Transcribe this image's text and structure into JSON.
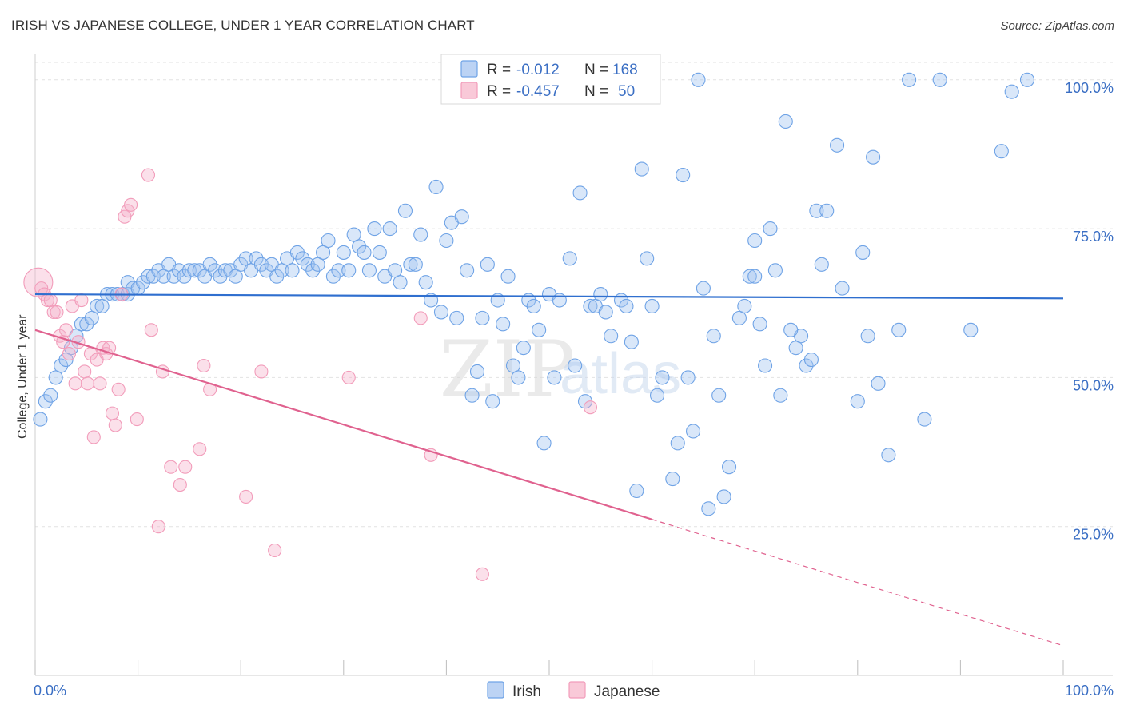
{
  "title": "IRISH VS JAPANESE COLLEGE, UNDER 1 YEAR CORRELATION CHART",
  "source": "Source: ZipAtlas.com",
  "chart_data": {
    "type": "scatter",
    "title": "IRISH VS JAPANESE COLLEGE, UNDER 1 YEAR CORRELATION CHART",
    "xlabel": "",
    "ylabel": "College, Under 1 year",
    "xlim": [
      0,
      100
    ],
    "ylim": [
      0,
      104
    ],
    "x_tick_labels": [
      "0.0%",
      "100.0%"
    ],
    "y_ticks": [
      25,
      50,
      75,
      100
    ],
    "y_tick_labels": [
      "25.0%",
      "50.0%",
      "75.0%",
      "100.0%"
    ],
    "grid": true,
    "legend_position": "top-center",
    "watermark": [
      "ZIP",
      "atlas"
    ],
    "colors": {
      "irish": "#6fa3e6",
      "japanese": "#f29cba",
      "irish_line": "#2f6fcf",
      "japanese_line": "#e0628f"
    },
    "stats": [
      {
        "name": "Irish",
        "r_label": "R =",
        "r_value": "-0.012",
        "n_label": "N =",
        "n_value": "168"
      },
      {
        "name": "Japanese",
        "r_label": "R =",
        "r_value": "-0.457",
        "n_label": "N =",
        "n_value": "50"
      }
    ],
    "trend_lines": [
      {
        "series": "Irish",
        "x0": 0,
        "y0": 64,
        "x1": 100,
        "y1": 63.3,
        "dashed_from": null
      },
      {
        "series": "Japanese",
        "x0": 0,
        "y0": 58,
        "x1": 100,
        "y1": 5,
        "dashed_from": 60
      }
    ],
    "series": [
      {
        "name": "Irish",
        "points": [
          [
            0.5,
            43
          ],
          [
            1.0,
            46
          ],
          [
            1.5,
            47
          ],
          [
            2.0,
            50
          ],
          [
            2.5,
            52
          ],
          [
            3.0,
            53
          ],
          [
            3.5,
            55
          ],
          [
            4.0,
            57
          ],
          [
            4.5,
            59
          ],
          [
            5.0,
            59
          ],
          [
            5.5,
            60
          ],
          [
            6.0,
            62
          ],
          [
            6.5,
            62
          ],
          [
            7.0,
            64
          ],
          [
            7.5,
            64
          ],
          [
            8.0,
            64
          ],
          [
            8.5,
            64
          ],
          [
            9.0,
            66
          ],
          [
            9.0,
            64
          ],
          [
            9.5,
            65
          ],
          [
            10.0,
            65
          ],
          [
            10.5,
            66
          ],
          [
            11.0,
            67
          ],
          [
            11.5,
            67
          ],
          [
            12.0,
            68
          ],
          [
            12.5,
            67
          ],
          [
            13.0,
            69
          ],
          [
            13.5,
            67
          ],
          [
            14.0,
            68
          ],
          [
            14.5,
            67
          ],
          [
            15.0,
            68
          ],
          [
            15.5,
            68
          ],
          [
            16.0,
            68
          ],
          [
            16.5,
            67
          ],
          [
            17.0,
            69
          ],
          [
            17.5,
            68
          ],
          [
            18.0,
            67
          ],
          [
            18.5,
            68
          ],
          [
            19.0,
            68
          ],
          [
            19.5,
            67
          ],
          [
            20.0,
            69
          ],
          [
            20.5,
            70
          ],
          [
            21.0,
            68
          ],
          [
            21.5,
            70
          ],
          [
            22.0,
            69
          ],
          [
            22.5,
            68
          ],
          [
            23.0,
            69
          ],
          [
            23.5,
            67
          ],
          [
            24.0,
            68
          ],
          [
            24.5,
            70
          ],
          [
            25.0,
            68
          ],
          [
            25.5,
            71
          ],
          [
            26.0,
            70
          ],
          [
            26.5,
            69
          ],
          [
            27.0,
            68
          ],
          [
            27.5,
            69
          ],
          [
            28.0,
            71
          ],
          [
            28.5,
            73
          ],
          [
            29.0,
            67
          ],
          [
            29.5,
            68
          ],
          [
            30.0,
            71
          ],
          [
            30.5,
            68
          ],
          [
            31.0,
            74
          ],
          [
            31.5,
            72
          ],
          [
            32.0,
            71
          ],
          [
            32.5,
            68
          ],
          [
            33.0,
            75
          ],
          [
            33.5,
            71
          ],
          [
            34.0,
            67
          ],
          [
            34.5,
            75
          ],
          [
            35.0,
            68
          ],
          [
            35.5,
            66
          ],
          [
            36.0,
            78
          ],
          [
            36.5,
            69
          ],
          [
            37.0,
            69
          ],
          [
            37.5,
            74
          ],
          [
            38.0,
            66
          ],
          [
            38.5,
            63
          ],
          [
            39.0,
            82
          ],
          [
            39.5,
            61
          ],
          [
            40.0,
            73
          ],
          [
            40.5,
            76
          ],
          [
            41.0,
            60
          ],
          [
            41.5,
            77
          ],
          [
            42.0,
            68
          ],
          [
            42.5,
            47
          ],
          [
            43.0,
            51
          ],
          [
            43.5,
            60
          ],
          [
            44.0,
            69
          ],
          [
            44.5,
            46
          ],
          [
            45.0,
            63
          ],
          [
            45.5,
            59
          ],
          [
            46.0,
            67
          ],
          [
            46.5,
            52
          ],
          [
            47.0,
            50
          ],
          [
            47.5,
            55
          ],
          [
            48.0,
            63
          ],
          [
            48.5,
            62
          ],
          [
            49.0,
            58
          ],
          [
            49.5,
            39
          ],
          [
            50.0,
            64
          ],
          [
            50.5,
            50
          ],
          [
            51.0,
            63
          ],
          [
            52.0,
            70
          ],
          [
            52.5,
            52
          ],
          [
            53.0,
            81
          ],
          [
            53.5,
            46
          ],
          [
            54.0,
            62
          ],
          [
            54.5,
            62
          ],
          [
            55.0,
            64
          ],
          [
            55.5,
            61
          ],
          [
            56.0,
            57
          ],
          [
            57.0,
            63
          ],
          [
            57.5,
            62
          ],
          [
            58.0,
            56
          ],
          [
            58.5,
            31
          ],
          [
            59.0,
            85
          ],
          [
            59.5,
            70
          ],
          [
            60.0,
            62
          ],
          [
            60.5,
            47
          ],
          [
            61.0,
            50
          ],
          [
            62.0,
            33
          ],
          [
            62.5,
            39
          ],
          [
            63.0,
            84
          ],
          [
            63.5,
            50
          ],
          [
            64.0,
            41
          ],
          [
            64.5,
            100
          ],
          [
            65.0,
            65
          ],
          [
            65.5,
            28
          ],
          [
            66.0,
            57
          ],
          [
            66.5,
            47
          ],
          [
            67.0,
            30
          ],
          [
            67.5,
            35
          ],
          [
            68.5,
            60
          ],
          [
            69.0,
            62
          ],
          [
            69.5,
            67
          ],
          [
            70.0,
            73
          ],
          [
            70.5,
            59
          ],
          [
            71.0,
            52
          ],
          [
            71.5,
            75
          ],
          [
            72.0,
            68
          ],
          [
            72.5,
            47
          ],
          [
            73.0,
            93
          ],
          [
            74.0,
            55
          ],
          [
            74.5,
            57
          ],
          [
            75.0,
            52
          ],
          [
            75.5,
            53
          ],
          [
            76.0,
            78
          ],
          [
            76.5,
            69
          ],
          [
            77.0,
            78
          ],
          [
            78.0,
            89
          ],
          [
            78.5,
            65
          ],
          [
            80.0,
            46
          ],
          [
            80.5,
            71
          ],
          [
            81.0,
            57
          ],
          [
            81.5,
            87
          ],
          [
            82.0,
            49
          ],
          [
            83.0,
            37
          ],
          [
            84.0,
            58
          ],
          [
            85.0,
            100
          ],
          [
            86.5,
            43
          ],
          [
            88.0,
            100
          ],
          [
            91.0,
            58
          ],
          [
            94.0,
            88
          ],
          [
            95.0,
            98
          ],
          [
            96.5,
            100
          ],
          [
            70.0,
            67
          ],
          [
            73.5,
            58
          ]
        ]
      },
      {
        "name": "Japanese",
        "points": [
          [
            0.3,
            66
          ],
          [
            0.6,
            65
          ],
          [
            0.9,
            64
          ],
          [
            1.2,
            63
          ],
          [
            1.5,
            63
          ],
          [
            1.8,
            61
          ],
          [
            2.1,
            61
          ],
          [
            2.4,
            57
          ],
          [
            2.7,
            56
          ],
          [
            3.0,
            58
          ],
          [
            3.3,
            54
          ],
          [
            3.6,
            62
          ],
          [
            3.9,
            49
          ],
          [
            4.2,
            56
          ],
          [
            4.5,
            63
          ],
          [
            4.8,
            51
          ],
          [
            5.1,
            49
          ],
          [
            5.4,
            54
          ],
          [
            5.7,
            40
          ],
          [
            6.0,
            53
          ],
          [
            6.3,
            49
          ],
          [
            6.6,
            55
          ],
          [
            6.9,
            54
          ],
          [
            7.2,
            55
          ],
          [
            7.5,
            44
          ],
          [
            7.8,
            42
          ],
          [
            8.1,
            48
          ],
          [
            8.4,
            64
          ],
          [
            8.7,
            77
          ],
          [
            9.0,
            78
          ],
          [
            9.3,
            79
          ],
          [
            9.9,
            43
          ],
          [
            11.0,
            84
          ],
          [
            11.3,
            58
          ],
          [
            12.0,
            25
          ],
          [
            12.4,
            51
          ],
          [
            13.2,
            35
          ],
          [
            14.1,
            32
          ],
          [
            14.6,
            35
          ],
          [
            16.0,
            38
          ],
          [
            16.4,
            52
          ],
          [
            17.0,
            48
          ],
          [
            20.5,
            30
          ],
          [
            22.0,
            51
          ],
          [
            23.3,
            21
          ],
          [
            30.5,
            50
          ],
          [
            37.5,
            60
          ],
          [
            38.5,
            37
          ],
          [
            43.5,
            17
          ],
          [
            54.0,
            45
          ]
        ]
      }
    ]
  },
  "legend": {
    "irish": "Irish",
    "japanese": "Japanese"
  }
}
